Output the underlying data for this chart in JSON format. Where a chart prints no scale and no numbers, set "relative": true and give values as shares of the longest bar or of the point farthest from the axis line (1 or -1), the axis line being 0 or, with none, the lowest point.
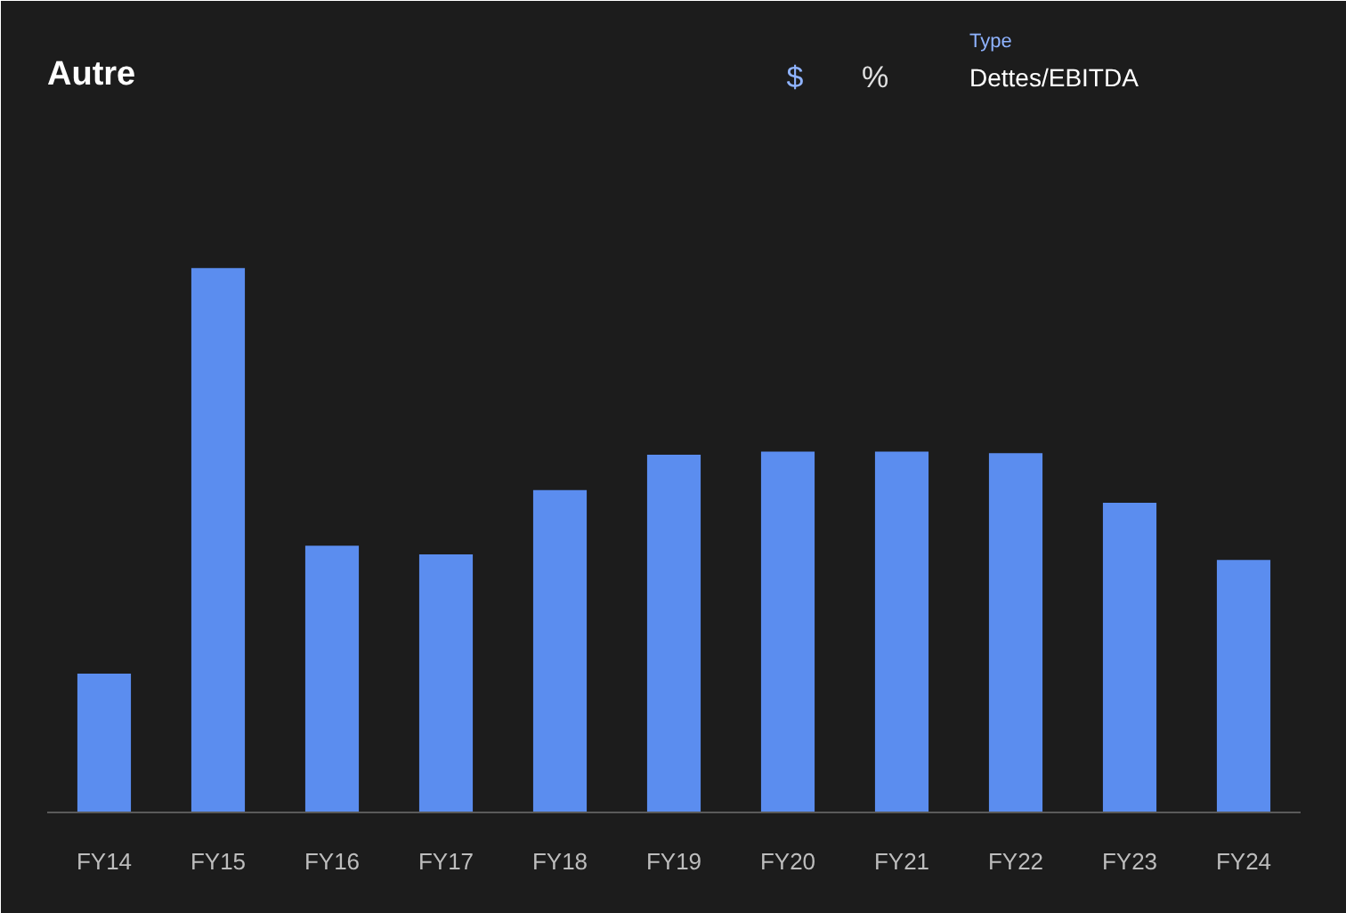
{
  "chart_data": {
    "type": "bar",
    "title": "Autre",
    "categories": [
      "FY14",
      "FY15",
      "FY16",
      "FY17",
      "FY18",
      "FY19",
      "FY20",
      "FY21",
      "FY22",
      "FY23",
      "FY24"
    ],
    "values": [
      0.255,
      1,
      0.49,
      0.474,
      0.592,
      0.657,
      0.663,
      0.663,
      0.66,
      0.569,
      0.464
    ],
    "color": "#5b8def",
    "relative": true,
    "grid": false,
    "annotations": [
      "$",
      "%",
      "Type",
      "Dettes/EBITDA"
    ]
  }
}
